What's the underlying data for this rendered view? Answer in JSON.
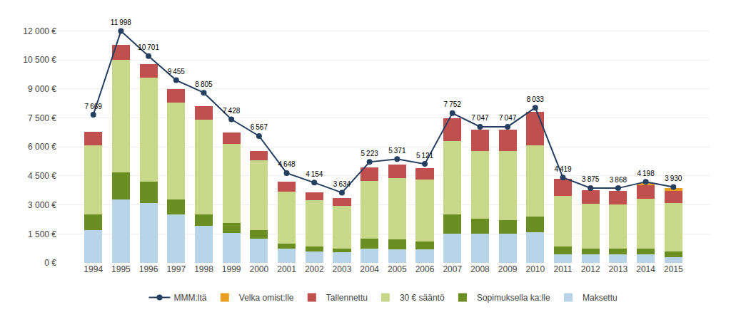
{
  "chart_data": {
    "type": "bar",
    "stacked": true,
    "categories": [
      "1994",
      "1995",
      "1996",
      "1997",
      "1998",
      "1999",
      "2000",
      "2001",
      "2002",
      "2003",
      "2004",
      "2005",
      "2006",
      "2007",
      "2008",
      "2009",
      "2010",
      "2011",
      "2012",
      "2013",
      "2014",
      "2015"
    ],
    "series": [
      {
        "name": "Maksettu",
        "color": "#b8d4e8",
        "values": [
          1700,
          3300,
          3100,
          2500,
          1900,
          1550,
          1250,
          750,
          600,
          550,
          750,
          700,
          700,
          1500,
          1500,
          1500,
          1600,
          450,
          450,
          450,
          450,
          300
        ]
      },
      {
        "name": "Sopimuksella ka:lle",
        "color": "#6b8e23",
        "values": [
          800,
          1400,
          1100,
          800,
          600,
          500,
          450,
          250,
          250,
          200,
          500,
          500,
          400,
          1000,
          800,
          700,
          800,
          400,
          300,
          280,
          280,
          280
        ]
      },
      {
        "name": "30 € sääntö",
        "color": "#c8d88a",
        "values": [
          3600,
          5800,
          5400,
          5000,
          4900,
          4100,
          3600,
          2700,
          2400,
          2200,
          3000,
          3200,
          3200,
          3800,
          3500,
          3600,
          3700,
          2600,
          2300,
          2300,
          2600,
          2500
        ]
      },
      {
        "name": "Tallennettu",
        "color": "#c0504d",
        "values": [
          700,
          800,
          700,
          700,
          700,
          600,
          500,
          500,
          400,
          400,
          700,
          700,
          600,
          1200,
          1100,
          1100,
          1700,
          900,
          700,
          700,
          700,
          650
        ]
      },
      {
        "name": "Velka omist:lle",
        "color": "#e8a020",
        "values": [
          0,
          0,
          0,
          0,
          0,
          0,
          0,
          0,
          0,
          0,
          0,
          0,
          0,
          0,
          0,
          0,
          0,
          0,
          0,
          0,
          100,
          150
        ]
      },
      {
        "name": "MMM:ltä",
        "type": "line",
        "color": "#243f60",
        "marker": "circle",
        "data_labels": true,
        "values": [
          7669,
          11998,
          10701,
          9455,
          8805,
          7428,
          6567,
          4648,
          4154,
          3634,
          5223,
          5371,
          5121,
          7752,
          7047,
          7047,
          8033,
          4419,
          3875,
          3868,
          4198,
          3930
        ],
        "value_labels": [
          "7 669",
          "11 998",
          "10 701",
          "9 455",
          "8 805",
          "7 428",
          "6 567",
          "4 648",
          "4 154",
          "3 634",
          "5 223",
          "5 371",
          "5 121",
          "7 752",
          "7 047",
          "7 047",
          "8 033",
          "4 419",
          "3 875",
          "3 868",
          "4 198",
          "3 930"
        ]
      }
    ],
    "ylim": [
      0,
      12500
    ],
    "yticks": [
      {
        "value": 0,
        "label": "0 €"
      },
      {
        "value": 1500,
        "label": "1 500 €"
      },
      {
        "value": 3000,
        "label": "3 000 €"
      },
      {
        "value": 4500,
        "label": "4 500 €"
      },
      {
        "value": 6000,
        "label": "6 000 €"
      },
      {
        "value": 7500,
        "label": "7 500 €"
      },
      {
        "value": 9000,
        "label": "9 000 €"
      },
      {
        "value": 10500,
        "label": "10 500 €"
      },
      {
        "value": 12000,
        "label": "12 000 €"
      }
    ],
    "grid": true,
    "legend": "bottom"
  }
}
